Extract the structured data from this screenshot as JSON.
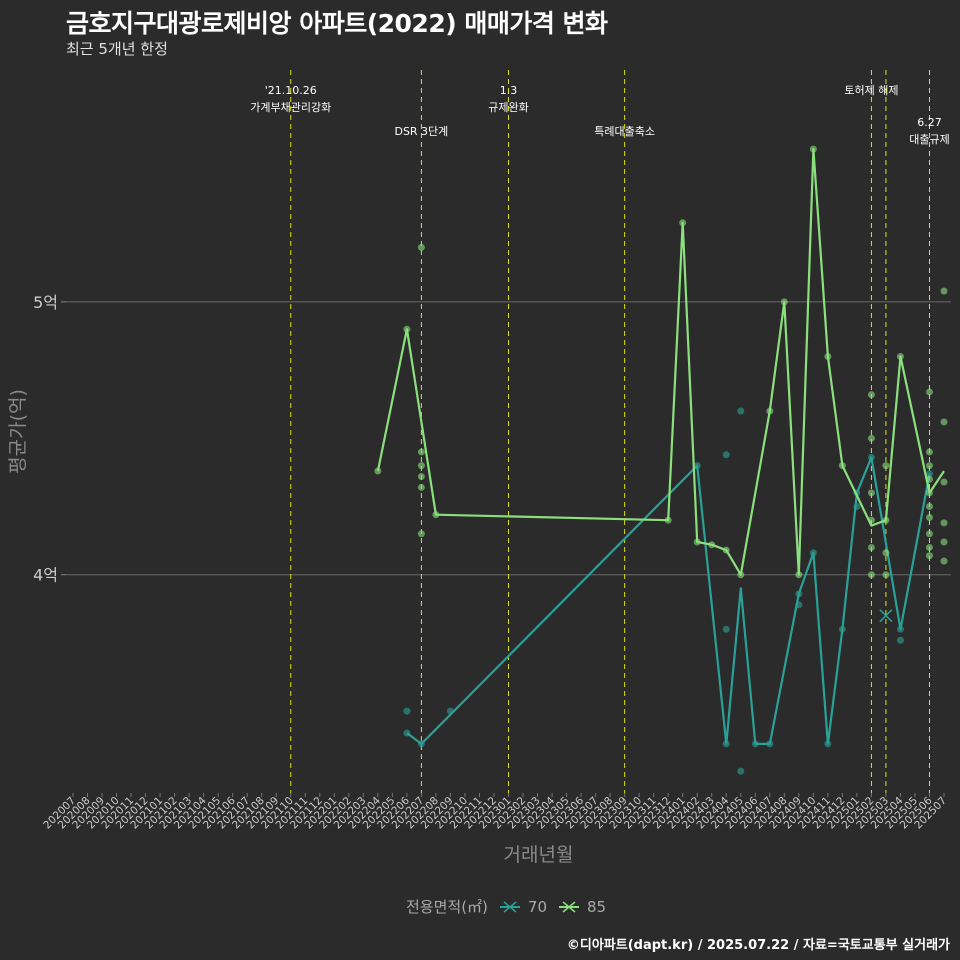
{
  "title": "금호지구대광로제비앙 아파트(2022) 매매가격 변화",
  "subtitle": "최근 5개년 한정",
  "caption": "©디아파트(dapt.kr) / 2025.07.22 / 자료=국토교통부 실거래가",
  "legend": {
    "title": "전용면적(㎡)",
    "items": [
      {
        "label": "70",
        "color": "#2aa198"
      },
      {
        "label": "85",
        "color": "#8be07d"
      }
    ]
  },
  "colors": {
    "background": "#2b2b2b",
    "event_line": "#d7e31a",
    "grid": "#6a6a6a"
  },
  "chart_data": {
    "type": "line",
    "xlabel": "거래년월",
    "ylabel": "평균가(억)",
    "x_categories": [
      "202007",
      "202008",
      "202009",
      "202010",
      "202011",
      "202012",
      "202101",
      "202102",
      "202103",
      "202104",
      "202105",
      "202106",
      "202107",
      "202108",
      "202109",
      "202110",
      "202111",
      "202112",
      "202201",
      "202202",
      "202203",
      "202204",
      "202205",
      "202206",
      "202207",
      "202208",
      "202209",
      "202210",
      "202211",
      "202212",
      "202301",
      "202302",
      "202303",
      "202304",
      "202305",
      "202306",
      "202307",
      "202308",
      "202309",
      "202310",
      "202311",
      "202312",
      "202401",
      "202402",
      "202403",
      "202404",
      "202405",
      "202406",
      "202407",
      "202408",
      "202409",
      "202410",
      "202411",
      "202412",
      "202501",
      "202502",
      "202503",
      "202504",
      "202505",
      "202506",
      "202507"
    ],
    "y_ticks": [
      {
        "value": 4,
        "label": "4억"
      },
      {
        "value": 5,
        "label": "5억"
      }
    ],
    "ylim": [
      3.2,
      5.85
    ],
    "grid": true,
    "legend_position": "bottom",
    "events": [
      {
        "x": "202110",
        "lines": [
          "'21.10.26",
          "가계부채관리강화"
        ],
        "row": 1
      },
      {
        "x": "202207",
        "lines": [
          "DSR 3단계"
        ],
        "row": 2
      },
      {
        "x": "202301",
        "lines": [
          "1.3",
          "규제완화"
        ],
        "row": 1
      },
      {
        "x": "202309",
        "lines": [
          "특례대출축소"
        ],
        "row": 2
      },
      {
        "x": "202502",
        "lines": [
          "토허제 해제"
        ],
        "row": 1
      },
      {
        "x": "202503",
        "lines": [],
        "row": 1
      },
      {
        "x": "202506",
        "lines": [
          "6.27",
          "대출규제"
        ],
        "row": 3
      }
    ],
    "series": [
      {
        "name": "70",
        "color": "#2aa198",
        "line": [
          [
            "202206",
            3.42
          ],
          [
            "202207",
            3.38
          ],
          [
            "202402",
            4.4
          ],
          [
            "202404",
            3.38
          ],
          [
            "202405",
            3.95
          ],
          [
            "202406",
            3.38
          ],
          [
            "202407",
            3.38
          ],
          [
            "202409",
            3.93
          ],
          [
            "202410",
            4.08
          ],
          [
            "202411",
            3.38
          ],
          [
            "202412",
            3.8
          ],
          [
            "202501",
            4.3
          ],
          [
            "202502",
            4.43
          ],
          [
            "202504",
            3.8
          ],
          [
            "202506",
            4.37
          ]
        ],
        "points": [
          [
            "202206",
            3.5
          ],
          [
            "202206",
            3.42
          ],
          [
            "202207",
            3.38
          ],
          [
            "202209",
            3.5
          ],
          [
            "202402",
            4.4
          ],
          [
            "202404",
            3.38
          ],
          [
            "202404",
            3.8
          ],
          [
            "202404",
            4.44
          ],
          [
            "202405",
            4.6
          ],
          [
            "202405",
            3.28
          ],
          [
            "202406",
            3.38
          ],
          [
            "202407",
            3.38
          ],
          [
            "202409",
            3.93
          ],
          [
            "202409",
            3.89
          ],
          [
            "202410",
            4.08
          ],
          [
            "202411",
            3.38
          ],
          [
            "202412",
            3.8
          ],
          [
            "202501",
            4.3
          ],
          [
            "202501",
            4.25
          ],
          [
            "202502",
            4.43
          ],
          [
            "202504",
            3.76
          ],
          [
            "202504",
            3.8
          ],
          [
            "202506",
            4.37
          ]
        ],
        "highlight": [
          "202503",
          3.85
        ]
      },
      {
        "name": "85",
        "color": "#8be07d",
        "line": [
          [
            "202204",
            4.38
          ],
          [
            "202206",
            4.9
          ],
          [
            "202208",
            4.22
          ],
          [
            "202312",
            4.2
          ],
          [
            "202401",
            5.29
          ],
          [
            "202402",
            4.12
          ],
          [
            "202403",
            4.11
          ],
          [
            "202404",
            4.09
          ],
          [
            "202405",
            4.0
          ],
          [
            "202407",
            4.6
          ],
          [
            "202408",
            5.0
          ],
          [
            "202409",
            4.0
          ],
          [
            "202410",
            5.56
          ],
          [
            "202411",
            4.8
          ],
          [
            "202412",
            4.4
          ],
          [
            "202502",
            4.18
          ],
          [
            "202503",
            4.2
          ],
          [
            "202504",
            4.8
          ],
          [
            "202506",
            4.3
          ],
          [
            "202507",
            4.38
          ]
        ],
        "points": [
          [
            "202204",
            4.38
          ],
          [
            "202206",
            4.9
          ],
          [
            "202207",
            5.2
          ],
          [
            "202207",
            4.45
          ],
          [
            "202207",
            4.4
          ],
          [
            "202207",
            4.36
          ],
          [
            "202207",
            4.32
          ],
          [
            "202207",
            4.15
          ],
          [
            "202208",
            4.22
          ],
          [
            "202312",
            4.2
          ],
          [
            "202401",
            5.29
          ],
          [
            "202402",
            4.12
          ],
          [
            "202403",
            4.11
          ],
          [
            "202404",
            4.09
          ],
          [
            "202405",
            4.0
          ],
          [
            "202407",
            4.6
          ],
          [
            "202408",
            5.0
          ],
          [
            "202409",
            4.0
          ],
          [
            "202410",
            5.56
          ],
          [
            "202411",
            4.8
          ],
          [
            "202412",
            4.4
          ],
          [
            "202502",
            4.5
          ],
          [
            "202502",
            4.3
          ],
          [
            "202502",
            4.2
          ],
          [
            "202502",
            4.1
          ],
          [
            "202502",
            4.0
          ],
          [
            "202502",
            4.66
          ],
          [
            "202503",
            4.4
          ],
          [
            "202503",
            4.2
          ],
          [
            "202503",
            4.08
          ],
          [
            "202503",
            4.0
          ],
          [
            "202504",
            4.8
          ],
          [
            "202506",
            4.67
          ],
          [
            "202506",
            4.45
          ],
          [
            "202506",
            4.4
          ],
          [
            "202506",
            4.35
          ],
          [
            "202506",
            4.3
          ],
          [
            "202506",
            4.25
          ],
          [
            "202506",
            4.21
          ],
          [
            "202506",
            4.15
          ],
          [
            "202506",
            4.1
          ],
          [
            "202506",
            4.07
          ],
          [
            "202507",
            5.04
          ],
          [
            "202507",
            4.56
          ],
          [
            "202507",
            4.34
          ],
          [
            "202507",
            4.19
          ],
          [
            "202507",
            4.12
          ],
          [
            "202507",
            4.05
          ]
        ]
      }
    ]
  }
}
